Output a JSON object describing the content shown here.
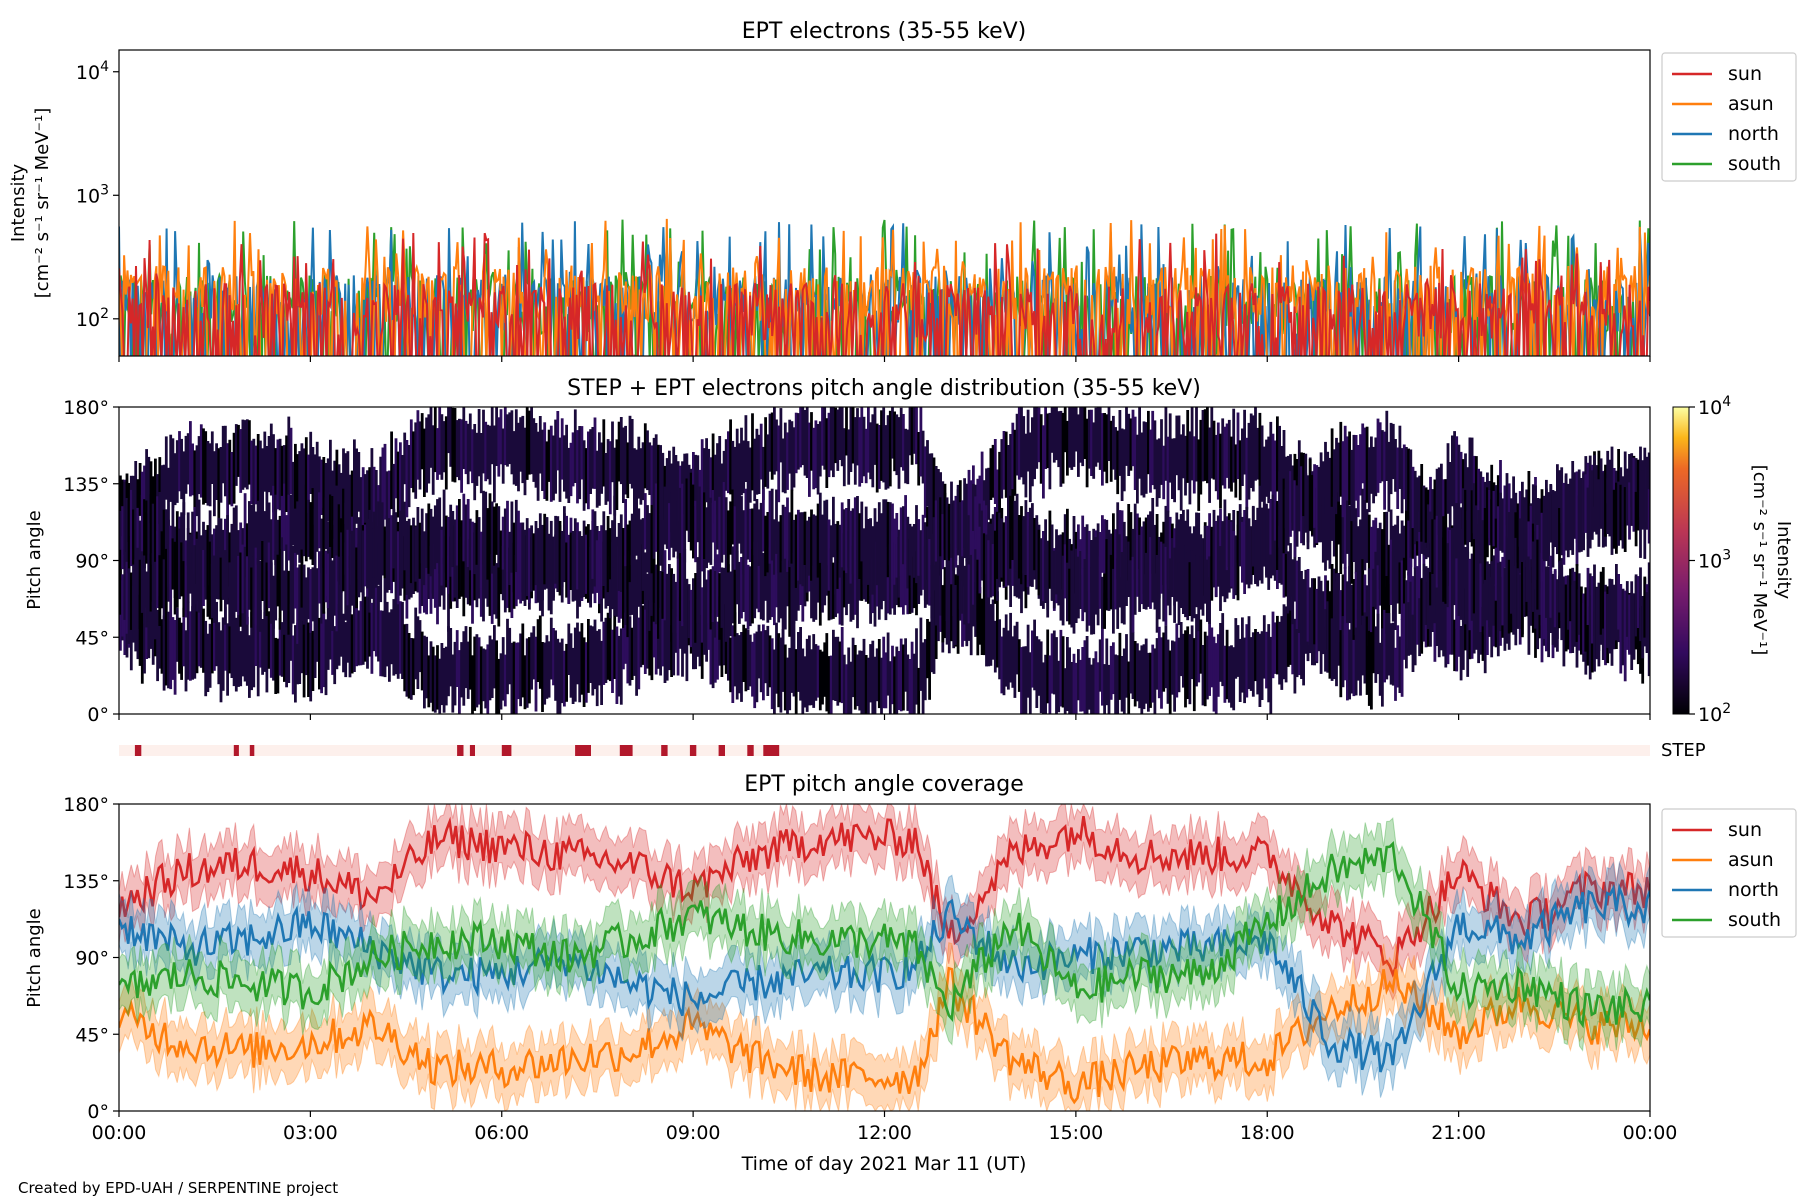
{
  "figure": {
    "footer": "Created by EPD-UAH / SERPENTINE project",
    "xlabel": "Time of day 2021 Mar 11 (UT)",
    "x_ticks": [
      "00:00",
      "03:00",
      "06:00",
      "09:00",
      "12:00",
      "15:00",
      "18:00",
      "21:00",
      "00:00"
    ]
  },
  "colors": {
    "sun": "#d62728",
    "asun": "#ff7f0e",
    "north": "#1f77b4",
    "south": "#2ca02c",
    "step_bar_bg": "#fdf0ec",
    "step_bar_mark": "#b2182b"
  },
  "chart_data": [
    {
      "type": "line",
      "title": "EPT electrons (35-55 keV)",
      "ylabel": "Intensity",
      "yunit": "[cm⁻² s⁻¹ sr⁻¹ MeV⁻¹]",
      "yscale": "log",
      "ylim": [
        50,
        15000
      ],
      "y_ticks": [
        {
          "base": "10",
          "exp": "2"
        },
        {
          "base": "10",
          "exp": "3"
        },
        {
          "base": "10",
          "exp": "4"
        }
      ],
      "xlim_hours": [
        0,
        24
      ],
      "legend": "outside-right",
      "series": [
        {
          "name": "sun",
          "baseline": 130,
          "peak_range": [
            150,
            500
          ]
        },
        {
          "name": "asun",
          "baseline": 180,
          "peak_range": [
            200,
            650
          ]
        },
        {
          "name": "north",
          "baseline": 150,
          "peak_range": [
            180,
            620
          ]
        },
        {
          "name": "south",
          "baseline": 150,
          "peak_range": [
            180,
            650
          ]
        }
      ]
    },
    {
      "type": "heatmap",
      "title": "STEP + EPT electrons pitch angle distribution (35-55 keV)",
      "ylabel": "Pitch angle",
      "y_ticks": [
        "0°",
        "45°",
        "90°",
        "135°",
        "180°"
      ],
      "ylim": [
        0,
        180
      ],
      "xlim_hours": [
        0,
        24
      ],
      "colorbar": {
        "label": "Intensity",
        "unit": "[cm⁻² s⁻¹ sr⁻¹ MeV⁻¹]",
        "scale": "log",
        "range": [
          100,
          10000
        ],
        "ticks": [
          {
            "base": "10",
            "exp": "2"
          },
          {
            "base": "10",
            "exp": "3"
          },
          {
            "base": "10",
            "exp": "4"
          }
        ],
        "colormap": "inferno"
      },
      "typical_intensity": 200
    },
    {
      "type": "bar",
      "label": "STEP",
      "description_of": "STEP availability strip",
      "xlim_hours": [
        0,
        24
      ],
      "intervals_hours": [
        [
          0.25,
          0.35
        ],
        [
          1.8,
          1.88
        ],
        [
          2.05,
          2.12
        ],
        [
          5.3,
          5.4
        ],
        [
          5.5,
          5.58
        ],
        [
          6.0,
          6.15
        ],
        [
          7.15,
          7.4
        ],
        [
          7.85,
          8.05
        ],
        [
          8.5,
          8.6
        ],
        [
          8.95,
          9.05
        ],
        [
          9.4,
          9.5
        ],
        [
          9.85,
          9.95
        ],
        [
          10.1,
          10.35
        ]
      ]
    },
    {
      "type": "line",
      "title": "EPT pitch angle coverage",
      "ylabel": "Pitch angle",
      "y_ticks": [
        "0°",
        "45°",
        "90°",
        "135°",
        "180°"
      ],
      "ylim": [
        0,
        180
      ],
      "xlim_hours": [
        0,
        24
      ],
      "legend": "outside-right",
      "band_halfwidth_deg": 15,
      "series": [
        {
          "name": "sun",
          "x": [
            0,
            1,
            2,
            3,
            4,
            5,
            6,
            7,
            8,
            9,
            10,
            11,
            12,
            12.5,
            13,
            14,
            15,
            16,
            17,
            18,
            19,
            20,
            21,
            22,
            23,
            24
          ],
          "values": [
            120,
            140,
            145,
            140,
            125,
            160,
            155,
            150,
            145,
            130,
            150,
            160,
            160,
            160,
            100,
            150,
            165,
            150,
            150,
            150,
            110,
            90,
            140,
            110,
            130,
            130
          ]
        },
        {
          "name": "asun",
          "x": [
            0,
            1,
            2,
            3,
            4,
            5,
            6,
            7,
            8,
            9,
            10,
            11,
            12,
            12.5,
            13,
            14,
            15,
            16,
            17,
            18,
            19,
            20,
            21,
            22,
            23,
            24
          ],
          "values": [
            55,
            40,
            35,
            40,
            50,
            25,
            25,
            30,
            35,
            50,
            30,
            20,
            20,
            20,
            75,
            30,
            15,
            25,
            30,
            30,
            60,
            75,
            45,
            65,
            50,
            50
          ]
        },
        {
          "name": "north",
          "x": [
            0,
            1,
            2,
            3,
            4,
            5,
            6,
            7,
            8,
            9,
            10,
            11,
            12,
            12.5,
            13,
            14,
            15,
            16,
            17,
            18,
            19,
            20,
            21,
            22,
            23,
            24
          ],
          "values": [
            110,
            95,
            100,
            110,
            95,
            80,
            80,
            90,
            75,
            65,
            75,
            80,
            80,
            85,
            115,
            85,
            90,
            95,
            95,
            100,
            40,
            30,
            110,
            100,
            120,
            120
          ]
        },
        {
          "name": "south",
          "x": [
            0,
            1,
            2,
            3,
            4,
            5,
            6,
            7,
            8,
            9,
            10,
            11,
            12,
            12.5,
            13,
            14,
            15,
            16,
            17,
            18,
            19,
            20,
            21,
            22,
            23,
            24
          ],
          "values": [
            70,
            80,
            75,
            70,
            90,
            100,
            100,
            90,
            100,
            115,
            105,
            100,
            100,
            95,
            60,
            110,
            70,
            80,
            80,
            110,
            140,
            150,
            70,
            75,
            60,
            60
          ]
        }
      ]
    }
  ]
}
